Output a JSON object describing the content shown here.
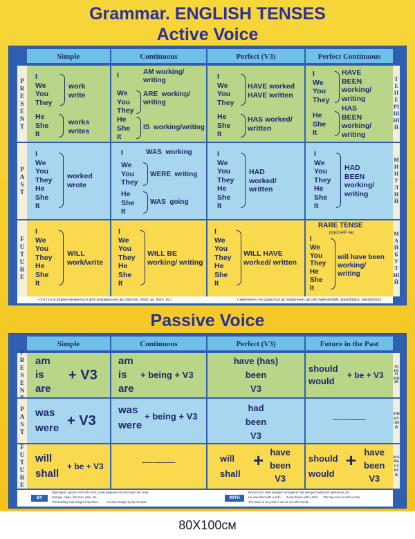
{
  "title": "Grammar. ENGLISH TENSES",
  "active_title": "Active Voice",
  "passive_title": "Passive Voice",
  "active_headers": [
    "Simple",
    "Continuous",
    "Perfect  (V3)",
    "Perfect Continuous"
  ],
  "passive_headers": [
    "Simple",
    "Continuous",
    "Perfect  (V3)",
    "Future in the Past"
  ],
  "rows_en": [
    "PRESENT",
    "PAST",
    "FUTURE"
  ],
  "rows_ua": [
    "ТЕПЕРІШНІЙ",
    "МИНУЛИЙ",
    "МАЙБУТНІЙ"
  ],
  "present": {
    "simple_p1": "I\nWe\nYou\nThey",
    "simple_v1": "work\nwrite",
    "simple_p2": "He\nShe\nIt",
    "simple_v2": "works\nwrites",
    "cont_p0": "I",
    "cont_v0": "AM working/\nwriting",
    "cont_p1": "We\nYou\nThey",
    "cont_v1": "ARE  working/\nwriting",
    "cont_p2": "He\nShe\nIt",
    "cont_v2": "IS  working/writing",
    "perf_p1": "I\nWe\nYou\nThey",
    "perf_v1": "HAVE worked\nHAVE written",
    "perf_p2": "He\nShe\nIt",
    "perf_v2": "HAS worked/\nwritten",
    "pc_p1": "I\nWe\nYou\nThey",
    "pc_v1": "HAVE\nBEEN\nworking/\nwriting",
    "pc_p2": "He\nShe\nIt",
    "pc_v2": "HAS\nBEEN\nworking/\nwriting"
  },
  "past": {
    "simple_p": "I\nWe\nYou\nThey\nHe\nShe\nIt",
    "simple_v": "worked\nwrote",
    "cont_p0": "I",
    "cont_v0": "WAS  working",
    "cont_p1": "We\nYou\nThey",
    "cont_v1": "WERE  writing",
    "cont_p2": "He\nShe\nIt",
    "cont_v2": "WAS  going",
    "perf_p": "I\nWe\nYou\nThey\nHe\nShe\nIt",
    "perf_v": "HAD\nworked/\nwritten",
    "pc_p": "I\nWe\nYou\nThey\nHe\nShe\nIt",
    "pc_v": "HAD\nBEEN\nworking/\nwriting"
  },
  "future": {
    "simple_p": "I\nWe\nYou\nThey\nHe\nShe\nIt",
    "simple_v": "WILL\nwork/write",
    "cont_p": "I\nWe\nYou\nThey\nHe\nShe\nIt",
    "cont_v": "WILL BE\nworking/ writing",
    "perf_p": "I\nWe\nYou\nThey\nHe\nShe\nIt",
    "perf_v": "WILL HAVE\nworked/ written",
    "pc_title": "RARE TENSE",
    "pc_sub": "рідкісний час",
    "pc_p": "I\nWe\nYou\nThey\nHe\nShe\nIt",
    "pc_v": "will have been\nworking/\nwriting"
  },
  "active_note_left": "• 3-я та 2-а форми вживаються для неправильних дієслів(read, sleep, go, learn, etc.)",
  "active_note_right": "• закінчення  -ed  додається до правильних дієслів (walked(walk), played(play), stayed(stay))",
  "passive": {
    "pres_s1": "am\nis\nare",
    "pres_s2": "+ V3",
    "pres_c1": "am\nis\nare",
    "pres_c2": "+ being + V3",
    "pres_p": "have (has)\nbeen\nV3",
    "pres_f1": "should\nwould",
    "pres_f2": "+ be + V3",
    "past_s1": "was\nwere",
    "past_s2": "+ V3",
    "past_c1": "was\nwere",
    "past_c2": "+ being + V3",
    "past_p": "had\nbeen\nV3",
    "past_f": "----------------",
    "fut_s1": "will\nshall",
    "fut_s2": "+ be + V3",
    "fut_c": "----------------",
    "fut_p1": "will\nshall",
    "fut_p2": "+",
    "fut_p3": "have\nbeen\nV3",
    "fut_f1": "should\nwould",
    "fut_f2": "+",
    "fut_f3": "have\nbeen\nV3"
  },
  "footer": {
    "by_label": "BY",
    "by_text": "Відповідає: діючої особі або силі, з ним вживаються (після дієслів типу):\ndamage, make, discover, write, etc.\nThis building was designed by Ross.          He was brought up by his aunt.",
    "with_label": "WITH",
    "with_text": "Вказується, який предмет, інструмент був використаний для здійснення дії.\nHe was killed with a knife.      It was drawn with a stick.      The bag was cut with a razor.\nThe stone is very soft. It can be cut with a knife."
  },
  "size_label": "80X100см"
}
